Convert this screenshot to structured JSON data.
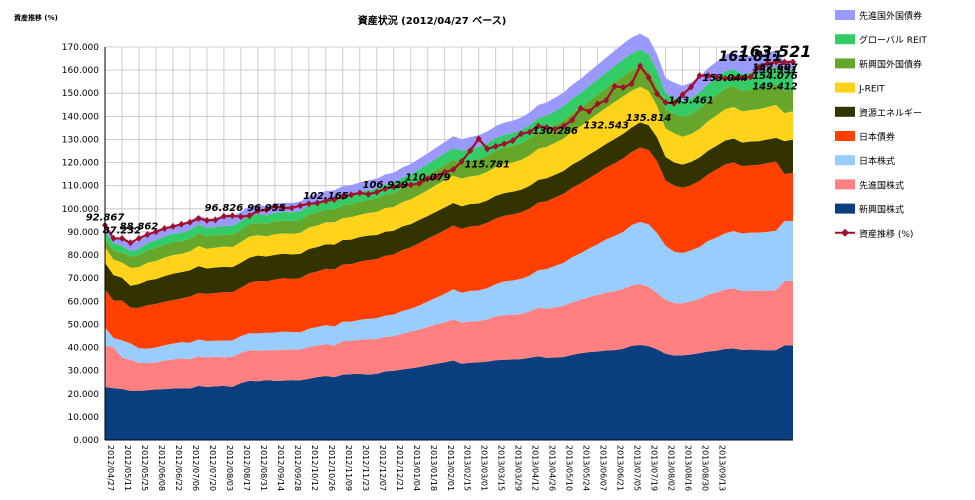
{
  "chart_data": {
    "type": "area",
    "title": "資産状況 (2012/04/27 ベース)",
    "ylabel": "資産推移 (%)",
    "xlabel": "",
    "ylim": [
      0,
      170
    ],
    "y_ticks": [
      "0.000",
      "10.000",
      "20.000",
      "30.000",
      "40.000",
      "50.000",
      "60.000",
      "70.000",
      "80.000",
      "90.000",
      "100.000",
      "110.000",
      "120.000",
      "130.000",
      "140.000",
      "150.000",
      "160.000",
      "170.000"
    ],
    "grid": true,
    "legend_position": "right",
    "colors": {
      "em_stocks": "#0a3f7f",
      "dev_stocks": "#ff8080",
      "jp_stocks": "#99ccff",
      "jp_bonds": "#ff4000",
      "j_reit": "#ffd31a",
      "resources": "#333300",
      "em_bonds": "#66a72b",
      "global_reit": "#33cc66",
      "dev_bonds": "#9999ff",
      "total_line": "#a0112d",
      "gridline": "#c0c0c0",
      "axis": "#000000"
    },
    "x_labels": [
      "2012/04/27",
      "2012/05/11",
      "2012/05/25",
      "2012/06/08",
      "2012/06/22",
      "2012/07/06",
      "2012/07/20",
      "2012/08/03",
      "2012/08/17",
      "2012/08/31",
      "2012/09/14",
      "2012/09/28",
      "2012/10/12",
      "2012/10/26",
      "2012/11/09",
      "2012/11/23",
      "2012/12/07",
      "2012/12/21",
      "2013/01/04",
      "2013/01/18",
      "2013/02/01",
      "2013/02/15",
      "2013/03/01",
      "2013/03/15",
      "2013/03/29",
      "2013/04/12",
      "2013/04/26",
      "2013/05/10",
      "2013/05/24",
      "2013/06/07",
      "2013/06/21",
      "2013/07/05",
      "2013/07/19",
      "2013/08/02",
      "2013/08/16",
      "2013/08/30",
      "2013/09/13"
    ],
    "x_label_every": 2,
    "series": [
      {
        "name": "新興国株式",
        "key": "em_stocks",
        "values": [
          22.9,
          22.4,
          22.1,
          21.2,
          21.2,
          21.5,
          21.9,
          22.0,
          22.3,
          22.4,
          22.2,
          23.4,
          22.9,
          23.2,
          23.4,
          23.0,
          24.6,
          25.6,
          25.4,
          25.9,
          25.6,
          25.7,
          25.9,
          25.8,
          26.5,
          27.2,
          27.7,
          27.2,
          28.2,
          28.5,
          28.6,
          28.3,
          28.6,
          29.7,
          29.9,
          30.5,
          31.0,
          31.6,
          32.3,
          33.0,
          33.6,
          34.4,
          33.0,
          33.4,
          33.6,
          33.9,
          34.5,
          34.7,
          34.8,
          35.0,
          35.6,
          36.2,
          35.5,
          35.7,
          35.9,
          36.8,
          37.5,
          38.0,
          38.3,
          38.7,
          38.9,
          39.4,
          40.7,
          41.1,
          40.6,
          39.2,
          37.3,
          36.5,
          36.6,
          37.0,
          37.6,
          38.3,
          38.6,
          39.4,
          39.6,
          39.0,
          39.1,
          38.9,
          38.8,
          38.9,
          40.9,
          40.9
        ]
      },
      {
        "name": "先進国株式",
        "key": "dev_stocks",
        "values": [
          18.0,
          17.7,
          13.6,
          13.5,
          12.1,
          11.8,
          11.6,
          12.4,
          12.6,
          12.9,
          12.7,
          12.8,
          12.8,
          12.8,
          12.4,
          13.0,
          13.1,
          13.3,
          13.2,
          13.0,
          13.2,
          13.4,
          13.2,
          13.3,
          13.8,
          13.7,
          13.8,
          13.7,
          14.6,
          14.3,
          14.8,
          15.3,
          15.1,
          14.9,
          15.0,
          15.5,
          15.8,
          16.2,
          16.6,
          17.0,
          17.3,
          17.9,
          17.8,
          17.9,
          17.8,
          18.3,
          18.9,
          19.3,
          19.3,
          19.5,
          20.0,
          21.0,
          21.3,
          21.7,
          22.1,
          22.8,
          23.1,
          23.8,
          24.4,
          25.0,
          25.5,
          25.9,
          26.2,
          26.3,
          25.7,
          24.4,
          23.3,
          22.7,
          22.5,
          23.0,
          23.4,
          24.6,
          25.2,
          25.7,
          26.0,
          25.4,
          25.5,
          25.6,
          25.8,
          25.9,
          27.8,
          28.0
        ]
      },
      {
        "name": "日本株式",
        "key": "jp_stocks",
        "values": [
          7.8,
          4.0,
          7.4,
          7.1,
          6.4,
          6.2,
          6.5,
          6.6,
          6.8,
          7.0,
          7.2,
          7.3,
          7.1,
          7.0,
          7.2,
          7.1,
          7.3,
          7.3,
          7.5,
          7.5,
          7.7,
          7.8,
          7.6,
          7.5,
          7.8,
          8.0,
          8.2,
          8.2,
          8.4,
          8.4,
          8.6,
          8.8,
          9.0,
          9.2,
          9.4,
          9.8,
          10.0,
          10.4,
          11.0,
          11.6,
          12.3,
          12.9,
          12.9,
          13.2,
          13.3,
          13.5,
          14.0,
          14.6,
          14.9,
          15.2,
          15.5,
          16.3,
          17.1,
          17.9,
          18.7,
          19.5,
          20.2,
          21.1,
          22.0,
          23.1,
          23.9,
          24.7,
          26.1,
          26.9,
          27.0,
          25.9,
          23.4,
          22.3,
          21.8,
          22.0,
          22.5,
          23.2,
          23.8,
          24.3,
          24.8,
          24.9,
          25.1,
          25.2,
          25.5,
          25.7,
          26.1,
          25.7
        ]
      },
      {
        "name": "日本債券",
        "key": "jp_bonds",
        "values": [
          16.5,
          16.2,
          17.3,
          15.4,
          17.5,
          18.8,
          18.9,
          18.8,
          18.8,
          18.9,
          20.0,
          20.1,
          20.4,
          20.6,
          21.0,
          20.8,
          20.9,
          21.9,
          22.7,
          22.2,
          22.9,
          23.1,
          23.0,
          23.4,
          23.9,
          24.0,
          24.4,
          24.7,
          24.7,
          24.9,
          25.2,
          25.4,
          25.6,
          25.9,
          26.0,
          26.4,
          26.6,
          27.0,
          27.2,
          27.3,
          27.6,
          27.6,
          27.7,
          27.9,
          28.0,
          28.3,
          28.4,
          28.4,
          28.6,
          28.8,
          29.0,
          29.2,
          29.4,
          29.6,
          29.8,
          30.0,
          30.2,
          30.4,
          30.8,
          31.0,
          31.4,
          31.8,
          31.6,
          32.3,
          32.2,
          31.0,
          28.2,
          28.6,
          28.2,
          28.2,
          28.6,
          28.8,
          29.4,
          29.8,
          29.7,
          29.2,
          29.1,
          29.3,
          29.7,
          29.9,
          20.2,
          21.0
        ]
      },
      {
        "name": "資源エネルギー",
        "key": "resources",
        "values": [
          11.4,
          11.1,
          9.8,
          9.5,
          10.3,
          10.7,
          10.7,
          11.1,
          11.4,
          11.4,
          11.3,
          11.6,
          11.0,
          11.0,
          10.9,
          10.9,
          10.8,
          10.8,
          11.0,
          10.8,
          10.7,
          10.6,
          10.6,
          10.5,
          10.6,
          10.6,
          10.6,
          10.7,
          10.6,
          10.6,
          10.6,
          10.6,
          10.4,
          10.4,
          10.2,
          10.2,
          10.0,
          10.0,
          9.8,
          9.9,
          9.8,
          9.7,
          9.7,
          9.7,
          9.6,
          9.6,
          9.8,
          9.8,
          9.8,
          9.8,
          9.8,
          9.8,
          9.9,
          9.9,
          9.9,
          10.0,
          10.1,
          10.2,
          10.2,
          10.3,
          10.5,
          10.6,
          10.6,
          10.8,
          10.7,
          10.4,
          10.2,
          10.0,
          10.0,
          10.1,
          10.1,
          10.2,
          10.3,
          10.3,
          10.3,
          10.2,
          10.3,
          10.3,
          10.2,
          10.3,
          14.3,
          14.4
        ]
      },
      {
        "name": "J-REIT",
        "key": "j_reit",
        "values": [
          6.7,
          6.7,
          6.6,
          7.8,
          7.3,
          7.7,
          7.9,
          8.0,
          8.1,
          7.9,
          8.2,
          8.7,
          8.5,
          8.6,
          8.8,
          8.7,
          8.9,
          9.1,
          8.8,
          8.7,
          8.9,
          8.8,
          8.9,
          9.1,
          9.4,
          9.3,
          9.5,
          9.7,
          9.5,
          9.7,
          9.6,
          9.8,
          10.0,
          10.2,
          10.3,
          10.5,
          10.7,
          10.9,
          11.2,
          11.5,
          11.8,
          11.8,
          12.0,
          11.9,
          12.2,
          12.4,
          12.5,
          12.6,
          12.7,
          12.9,
          13.2,
          13.5,
          13.6,
          13.8,
          14.0,
          14.3,
          14.6,
          15.0,
          15.4,
          15.6,
          16.0,
          16.2,
          15.9,
          15.4,
          14.8,
          13.6,
          12.3,
          12.6,
          12.1,
          12.0,
          12.4,
          12.8,
          13.1,
          13.5,
          13.7,
          13.5,
          13.6,
          13.8,
          14.0,
          14.2,
          12.1,
          12.2
        ]
      },
      {
        "name": "新興国外国債券",
        "key": "em_bonds",
        "values": [
          3.6,
          3.9,
          4.3,
          4.8,
          5.2,
          5.5,
          5.6,
          5.6,
          5.6,
          5.5,
          5.5,
          5.5,
          5.4,
          5.3,
          5.2,
          5.3,
          5.3,
          5.3,
          5.4,
          5.4,
          5.5,
          5.5,
          5.5,
          5.5,
          5.6,
          5.6,
          5.5,
          5.6,
          5.6,
          5.7,
          5.7,
          5.7,
          5.8,
          5.9,
          6.0,
          6.1,
          6.2,
          6.3,
          6.4,
          6.5,
          6.6,
          6.8,
          6.8,
          6.8,
          6.9,
          6.9,
          7.0,
          7.1,
          7.1,
          7.2,
          7.3,
          7.4,
          7.5,
          7.6,
          7.8,
          7.9,
          8.0,
          8.1,
          8.3,
          8.4,
          8.6,
          8.8,
          8.8,
          8.8,
          8.7,
          8.5,
          8.4,
          8.5,
          8.5,
          8.6,
          8.7,
          8.8,
          8.9,
          9.0,
          9.0,
          8.9,
          8.9,
          8.9,
          8.9,
          9.0,
          9.6,
          9.7
        ]
      },
      {
        "name": "グローバル REIT",
        "key": "global_reit",
        "values": [
          3.3,
          3.1,
          2.9,
          2.3,
          2.8,
          3.0,
          3.3,
          3.5,
          3.6,
          3.7,
          3.7,
          3.8,
          3.7,
          3.6,
          3.7,
          3.8,
          3.8,
          3.8,
          3.7,
          3.7,
          3.8,
          3.7,
          3.8,
          3.9,
          3.9,
          3.9,
          4.0,
          4.1,
          4.1,
          4.1,
          4.2,
          4.2,
          4.3,
          4.4,
          4.4,
          4.5,
          4.6,
          4.7,
          4.8,
          4.9,
          5.0,
          5.2,
          5.2,
          5.2,
          5.3,
          5.4,
          5.5,
          5.5,
          5.6,
          5.7,
          5.8,
          5.9,
          6.0,
          6.1,
          6.2,
          6.3,
          6.4,
          6.5,
          6.6,
          6.8,
          7.0,
          7.3,
          7.3,
          7.3,
          7.2,
          7.0,
          6.8,
          6.9,
          6.9,
          7.0,
          7.1,
          7.2,
          7.3,
          7.4,
          7.4,
          7.3,
          7.3,
          7.3,
          7.4,
          7.4,
          8.4,
          8.5
        ]
      },
      {
        "name": "先進国外国債券",
        "key": "dev_bonds",
        "values": [
          2.7,
          2.6,
          3.2,
          3.4,
          3.4,
          3.5,
          3.6,
          3.7,
          3.7,
          3.8,
          3.9,
          4.0,
          3.9,
          3.9,
          4.0,
          4.0,
          4.0,
          4.0,
          4.0,
          3.9,
          4.0,
          3.9,
          4.0,
          4.1,
          4.0,
          4.0,
          4.0,
          4.1,
          4.1,
          4.1,
          4.1,
          4.2,
          4.2,
          4.3,
          4.4,
          4.4,
          4.5,
          4.6,
          4.7,
          4.8,
          4.9,
          5.1,
          5.0,
          5.0,
          5.1,
          5.1,
          5.2,
          5.3,
          5.3,
          5.4,
          5.5,
          5.6,
          5.7,
          5.8,
          5.9,
          6.0,
          6.1,
          6.2,
          6.3,
          6.5,
          6.6,
          6.7,
          6.9,
          6.9,
          6.9,
          6.8,
          6.6,
          6.5,
          6.6,
          6.7,
          6.8,
          6.9,
          7.0,
          7.2,
          7.3,
          7.2,
          7.3,
          7.3,
          7.2,
          7.3,
          4.1,
          4.4
        ]
      }
    ],
    "line": {
      "name": "資産推移 (%)",
      "key": "total_line",
      "values": [
        92.9,
        87.2,
        87.2,
        85.3,
        87.2,
        88.9,
        90.1,
        91.5,
        92.4,
        93.3,
        94.2,
        95.8,
        95.0,
        95.2,
        96.8,
        97.0,
        96.6,
        97.0,
        99.1,
        99.6,
        101.1,
        100.3,
        100.4,
        101.4,
        102.2,
        102.5,
        103.5,
        104.0,
        105.2,
        106.1,
        106.9,
        106.3,
        107.2,
        108.7,
        109.5,
        110.1,
        110.4,
        111.0,
        113.0,
        113.9,
        115.8,
        117.0,
        120.5,
        125.2,
        130.3,
        125.9,
        127.0,
        128.1,
        129.5,
        132.5,
        133.2,
        135.8,
        135.2,
        134.5,
        135.8,
        138.4,
        143.5,
        142.1,
        145.4,
        146.9,
        153.0,
        152.5,
        154.1,
        161.8,
        156.8,
        149.8,
        146.0,
        145.6,
        149.4,
        152.7,
        157.6,
        157.6,
        156.8,
        156.4,
        156.5,
        156.6,
        157.0,
        161.2,
        162.8,
        163.5,
        163.5,
        163.5
      ]
    },
    "annotations": [
      {
        "text": "92.867",
        "index": 0,
        "value": 92.867,
        "size": "normal"
      },
      {
        "text": "87.232",
        "index": 2,
        "value": 87.232,
        "size": "normal"
      },
      {
        "text": "88.862",
        "index": 4,
        "value": 88.862,
        "size": "normal"
      },
      {
        "text": "96.826",
        "index": 14,
        "value": 96.826,
        "size": "normal"
      },
      {
        "text": "96.955",
        "index": 19,
        "value": 96.955,
        "size": "normal"
      },
      {
        "text": "102.165",
        "index": 26,
        "value": 102.165,
        "size": "normal"
      },
      {
        "text": "106.929",
        "index": 33,
        "value": 106.929,
        "size": "normal"
      },
      {
        "text": "110.079",
        "index": 38,
        "value": 110.079,
        "size": "normal"
      },
      {
        "text": "115.781",
        "index": 45,
        "value": 115.781,
        "size": "normal"
      },
      {
        "text": "130.286",
        "index": 53,
        "value": 130.286,
        "size": "normal"
      },
      {
        "text": "132.543",
        "index": 59,
        "value": 132.543,
        "size": "normal"
      },
      {
        "text": "135.814",
        "index": 64,
        "value": 135.814,
        "size": "normal"
      },
      {
        "text": "143.461",
        "index": 69,
        "value": 143.461,
        "size": "normal"
      },
      {
        "text": "153.044",
        "index": 73,
        "value": 153.044,
        "size": "normal"
      },
      {
        "text": "161.811",
        "index": 76,
        "value": 161.811,
        "size": "large"
      },
      {
        "text": "154.076",
        "index": 79,
        "value": 154.076,
        "size": "normal"
      },
      {
        "text": "149.412",
        "index": 85,
        "value": 149.412,
        "size": "normal"
      },
      {
        "text": "157.607",
        "index": 90,
        "value": 157.607,
        "size": "normal"
      },
      {
        "text": "156.551",
        "index": 96,
        "value": 156.551,
        "size": "normal"
      },
      {
        "text": "163.521",
        "index": 99,
        "value": 163.521,
        "size": "xlarge"
      }
    ]
  }
}
